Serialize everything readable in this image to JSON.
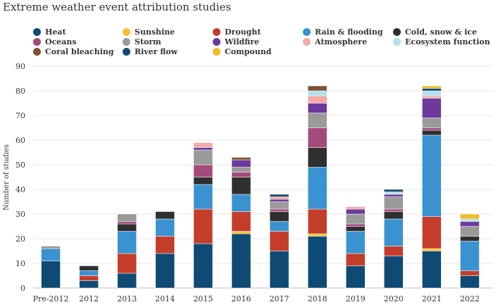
{
  "title": "Extreme weather event attribution studies",
  "chart_data": {
    "type": "bar",
    "stacked": true,
    "title": "Extreme weather event attribution studies",
    "xlabel": "",
    "ylabel": "Number of studies",
    "ylim": [
      0,
      90
    ],
    "yticks": [
      0,
      10,
      20,
      30,
      40,
      50,
      60,
      70,
      80,
      90
    ],
    "categories": [
      "Pre-2012",
      "2012",
      "2013",
      "2014",
      "2015",
      "2016",
      "2017",
      "2018",
      "2019",
      "2020",
      "2021",
      "2022"
    ],
    "legend_placement": "top",
    "series": [
      {
        "name": "Heat",
        "color": "#0f4a75",
        "values": [
          11,
          3,
          6,
          14,
          18,
          22,
          15,
          21,
          9,
          13,
          15,
          5
        ]
      },
      {
        "name": "Sunshine",
        "color": "#f2c12e",
        "values": [
          0,
          0,
          0,
          0,
          0,
          1,
          0,
          1,
          0,
          0,
          1,
          0
        ]
      },
      {
        "name": "Drought",
        "color": "#c43d2b",
        "values": [
          0,
          2,
          8,
          7,
          14,
          8,
          8,
          10,
          5,
          4,
          13,
          2
        ]
      },
      {
        "name": "Rain & flooding",
        "color": "#3a93d0",
        "values": [
          5,
          2,
          9,
          7,
          10,
          7,
          4,
          17,
          9,
          11,
          33,
          12
        ]
      },
      {
        "name": "Cold, snow & ice",
        "color": "#2f2f2f",
        "values": [
          0,
          2,
          3,
          3,
          3,
          7,
          4,
          8,
          2,
          3,
          2,
          2
        ]
      },
      {
        "name": "Oceans",
        "color": "#a34a7c",
        "values": [
          0,
          0,
          1,
          0,
          5,
          2,
          1,
          8,
          1,
          1,
          1,
          0
        ]
      },
      {
        "name": "Storm",
        "color": "#9a9a9a",
        "values": [
          1,
          0,
          3,
          0,
          6,
          2,
          3,
          6,
          4,
          5,
          4,
          4
        ]
      },
      {
        "name": "Wildfire",
        "color": "#6b3a9c",
        "values": [
          0,
          0,
          0,
          0,
          1,
          3,
          1,
          4,
          2,
          1,
          8,
          2
        ]
      },
      {
        "name": "Atmosphere",
        "color": "#f3aaa8",
        "values": [
          0,
          0,
          0,
          0,
          2,
          0,
          1,
          3,
          1,
          0,
          1,
          0
        ]
      },
      {
        "name": "Ecosystem function",
        "color": "#b3e1ee",
        "values": [
          0,
          0,
          0,
          0,
          0,
          0,
          0,
          2,
          0,
          1,
          2,
          1
        ]
      },
      {
        "name": "Coral bleaching",
        "color": "#7a5235",
        "values": [
          0,
          0,
          0,
          0,
          0,
          1,
          0,
          2,
          0,
          0,
          0,
          0
        ]
      },
      {
        "name": "River flow",
        "color": "#17476e",
        "values": [
          0,
          0,
          0,
          0,
          0,
          0,
          1,
          0,
          0,
          1,
          1,
          0
        ]
      },
      {
        "name": "Compound",
        "color": "#edbd2a",
        "values": [
          0,
          0,
          0,
          0,
          0,
          0,
          0,
          0,
          0,
          0,
          1,
          2
        ]
      }
    ]
  }
}
